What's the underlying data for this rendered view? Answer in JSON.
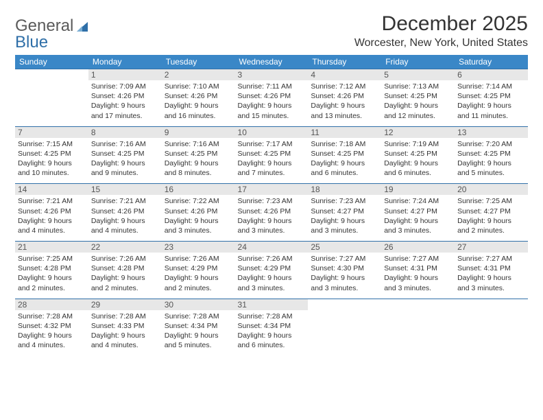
{
  "logo": {
    "word1": "General",
    "word2": "Blue"
  },
  "title": "December 2025",
  "location": "Worcester, New York, United States",
  "colors": {
    "header_bg": "#3a87c7",
    "header_fg": "#ffffff",
    "daynum_bg": "#e7e7e7",
    "daynum_fg": "#555555",
    "divider": "#2f6fa8",
    "text": "#333333",
    "logo_gray": "#5a5a5a",
    "logo_blue": "#2f6fa8",
    "background": "#ffffff"
  },
  "typography": {
    "title_fontsize": 30,
    "location_fontsize": 16,
    "header_fontsize": 12,
    "daynum_fontsize": 12,
    "body_fontsize": 10.5,
    "logo_fontsize": 24
  },
  "dow": [
    "Sunday",
    "Monday",
    "Tuesday",
    "Wednesday",
    "Thursday",
    "Friday",
    "Saturday"
  ],
  "weeks": [
    [
      null,
      {
        "n": "1",
        "sr": "Sunrise: 7:09 AM",
        "ss": "Sunset: 4:26 PM",
        "d1": "Daylight: 9 hours",
        "d2": "and 17 minutes."
      },
      {
        "n": "2",
        "sr": "Sunrise: 7:10 AM",
        "ss": "Sunset: 4:26 PM",
        "d1": "Daylight: 9 hours",
        "d2": "and 16 minutes."
      },
      {
        "n": "3",
        "sr": "Sunrise: 7:11 AM",
        "ss": "Sunset: 4:26 PM",
        "d1": "Daylight: 9 hours",
        "d2": "and 15 minutes."
      },
      {
        "n": "4",
        "sr": "Sunrise: 7:12 AM",
        "ss": "Sunset: 4:26 PM",
        "d1": "Daylight: 9 hours",
        "d2": "and 13 minutes."
      },
      {
        "n": "5",
        "sr": "Sunrise: 7:13 AM",
        "ss": "Sunset: 4:25 PM",
        "d1": "Daylight: 9 hours",
        "d2": "and 12 minutes."
      },
      {
        "n": "6",
        "sr": "Sunrise: 7:14 AM",
        "ss": "Sunset: 4:25 PM",
        "d1": "Daylight: 9 hours",
        "d2": "and 11 minutes."
      }
    ],
    [
      {
        "n": "7",
        "sr": "Sunrise: 7:15 AM",
        "ss": "Sunset: 4:25 PM",
        "d1": "Daylight: 9 hours",
        "d2": "and 10 minutes."
      },
      {
        "n": "8",
        "sr": "Sunrise: 7:16 AM",
        "ss": "Sunset: 4:25 PM",
        "d1": "Daylight: 9 hours",
        "d2": "and 9 minutes."
      },
      {
        "n": "9",
        "sr": "Sunrise: 7:16 AM",
        "ss": "Sunset: 4:25 PM",
        "d1": "Daylight: 9 hours",
        "d2": "and 8 minutes."
      },
      {
        "n": "10",
        "sr": "Sunrise: 7:17 AM",
        "ss": "Sunset: 4:25 PM",
        "d1": "Daylight: 9 hours",
        "d2": "and 7 minutes."
      },
      {
        "n": "11",
        "sr": "Sunrise: 7:18 AM",
        "ss": "Sunset: 4:25 PM",
        "d1": "Daylight: 9 hours",
        "d2": "and 6 minutes."
      },
      {
        "n": "12",
        "sr": "Sunrise: 7:19 AM",
        "ss": "Sunset: 4:25 PM",
        "d1": "Daylight: 9 hours",
        "d2": "and 6 minutes."
      },
      {
        "n": "13",
        "sr": "Sunrise: 7:20 AM",
        "ss": "Sunset: 4:25 PM",
        "d1": "Daylight: 9 hours",
        "d2": "and 5 minutes."
      }
    ],
    [
      {
        "n": "14",
        "sr": "Sunrise: 7:21 AM",
        "ss": "Sunset: 4:26 PM",
        "d1": "Daylight: 9 hours",
        "d2": "and 4 minutes."
      },
      {
        "n": "15",
        "sr": "Sunrise: 7:21 AM",
        "ss": "Sunset: 4:26 PM",
        "d1": "Daylight: 9 hours",
        "d2": "and 4 minutes."
      },
      {
        "n": "16",
        "sr": "Sunrise: 7:22 AM",
        "ss": "Sunset: 4:26 PM",
        "d1": "Daylight: 9 hours",
        "d2": "and 3 minutes."
      },
      {
        "n": "17",
        "sr": "Sunrise: 7:23 AM",
        "ss": "Sunset: 4:26 PM",
        "d1": "Daylight: 9 hours",
        "d2": "and 3 minutes."
      },
      {
        "n": "18",
        "sr": "Sunrise: 7:23 AM",
        "ss": "Sunset: 4:27 PM",
        "d1": "Daylight: 9 hours",
        "d2": "and 3 minutes."
      },
      {
        "n": "19",
        "sr": "Sunrise: 7:24 AM",
        "ss": "Sunset: 4:27 PM",
        "d1": "Daylight: 9 hours",
        "d2": "and 3 minutes."
      },
      {
        "n": "20",
        "sr": "Sunrise: 7:25 AM",
        "ss": "Sunset: 4:27 PM",
        "d1": "Daylight: 9 hours",
        "d2": "and 2 minutes."
      }
    ],
    [
      {
        "n": "21",
        "sr": "Sunrise: 7:25 AM",
        "ss": "Sunset: 4:28 PM",
        "d1": "Daylight: 9 hours",
        "d2": "and 2 minutes."
      },
      {
        "n": "22",
        "sr": "Sunrise: 7:26 AM",
        "ss": "Sunset: 4:28 PM",
        "d1": "Daylight: 9 hours",
        "d2": "and 2 minutes."
      },
      {
        "n": "23",
        "sr": "Sunrise: 7:26 AM",
        "ss": "Sunset: 4:29 PM",
        "d1": "Daylight: 9 hours",
        "d2": "and 2 minutes."
      },
      {
        "n": "24",
        "sr": "Sunrise: 7:26 AM",
        "ss": "Sunset: 4:29 PM",
        "d1": "Daylight: 9 hours",
        "d2": "and 3 minutes."
      },
      {
        "n": "25",
        "sr": "Sunrise: 7:27 AM",
        "ss": "Sunset: 4:30 PM",
        "d1": "Daylight: 9 hours",
        "d2": "and 3 minutes."
      },
      {
        "n": "26",
        "sr": "Sunrise: 7:27 AM",
        "ss": "Sunset: 4:31 PM",
        "d1": "Daylight: 9 hours",
        "d2": "and 3 minutes."
      },
      {
        "n": "27",
        "sr": "Sunrise: 7:27 AM",
        "ss": "Sunset: 4:31 PM",
        "d1": "Daylight: 9 hours",
        "d2": "and 3 minutes."
      }
    ],
    [
      {
        "n": "28",
        "sr": "Sunrise: 7:28 AM",
        "ss": "Sunset: 4:32 PM",
        "d1": "Daylight: 9 hours",
        "d2": "and 4 minutes."
      },
      {
        "n": "29",
        "sr": "Sunrise: 7:28 AM",
        "ss": "Sunset: 4:33 PM",
        "d1": "Daylight: 9 hours",
        "d2": "and 4 minutes."
      },
      {
        "n": "30",
        "sr": "Sunrise: 7:28 AM",
        "ss": "Sunset: 4:34 PM",
        "d1": "Daylight: 9 hours",
        "d2": "and 5 minutes."
      },
      {
        "n": "31",
        "sr": "Sunrise: 7:28 AM",
        "ss": "Sunset: 4:34 PM",
        "d1": "Daylight: 9 hours",
        "d2": "and 6 minutes."
      },
      null,
      null,
      null
    ]
  ]
}
